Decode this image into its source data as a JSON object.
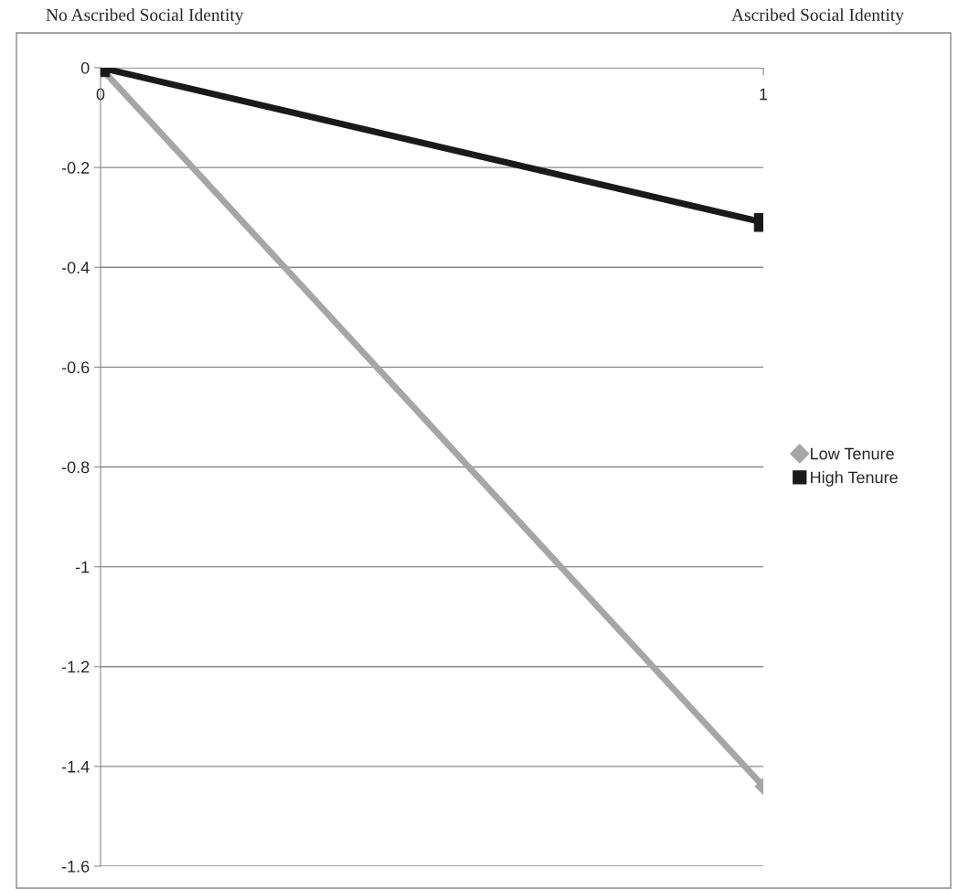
{
  "chart_data": {
    "type": "line",
    "annotations": [
      "No Ascribed Social Identity",
      "Ascribed Social Identity"
    ],
    "x": [
      0,
      1
    ],
    "series": [
      {
        "name": "Low Tenure",
        "color": "#a6a6a6",
        "values": [
          0,
          -1.44
        ],
        "marker": "diamond"
      },
      {
        "name": "High Tenure",
        "color": "#1a1a1a",
        "values": [
          0,
          -0.31
        ],
        "marker": "square"
      }
    ],
    "xlim": [
      0,
      1
    ],
    "xticks": [
      0,
      1
    ],
    "ylim": [
      -1.6,
      0
    ],
    "yticks": [
      0,
      -0.2,
      -0.4,
      -0.6,
      -0.8,
      -1,
      -1.2,
      -1.4,
      -1.6
    ],
    "grid": "y",
    "legend": "right",
    "line_style": "solid"
  }
}
